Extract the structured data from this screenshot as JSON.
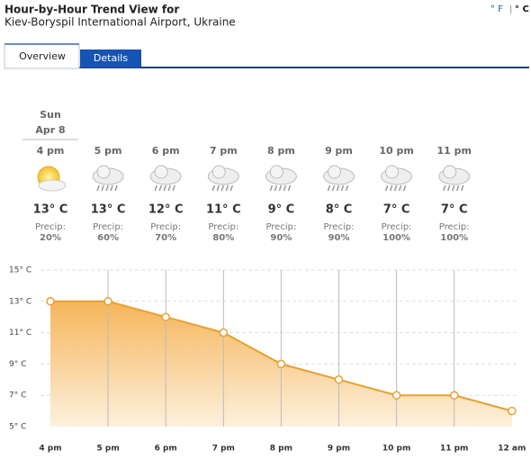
{
  "header": {
    "title": "Hour-by-Hour Trend View for",
    "location": "Kiev-Boryspil International Airport, Ukraine",
    "unit_f": "° F",
    "unit_sep": "|",
    "unit_c": "° C"
  },
  "tabs": [
    "Overview",
    "Details"
  ],
  "day": {
    "name": "Sun",
    "date": "Apr 8"
  },
  "precip_label": "Precip:",
  "hours": [
    {
      "temp": "13° C",
      "precip": "20%"
    },
    {
      "temp": "13° C",
      "precip": "60%"
    },
    {
      "temp": "12° C",
      "precip": "70%"
    },
    {
      "temp": "11° C",
      "precip": "80%"
    },
    {
      "temp": "9° C",
      "precip": "90%"
    },
    {
      "temp": "8° C",
      "precip": "90%"
    },
    {
      "temp": "7° C",
      "precip": "100%"
    },
    {
      "temp": "7° C",
      "precip": "100%"
    }
  ],
  "chart_data": {
    "type": "line",
    "categories": [
      "4 pm",
      "5 pm",
      "6 pm",
      "7 pm",
      "8 pm",
      "9 pm",
      "10 pm",
      "11 pm",
      "12 am"
    ],
    "values": [
      13,
      13,
      12,
      11,
      9,
      8,
      7,
      7,
      6
    ],
    "color": "#e8a030",
    "ylim": [
      5,
      15
    ],
    "yticks": [
      {
        "value": 5,
        "label": "5° C"
      },
      {
        "value": 7,
        "label": "7° C"
      },
      {
        "value": 9,
        "label": "9° C"
      },
      {
        "value": 11,
        "label": "11° C"
      },
      {
        "value": 13,
        "label": "13° C"
      },
      {
        "value": 15,
        "label": "15° C"
      }
    ],
    "grid": true
  }
}
